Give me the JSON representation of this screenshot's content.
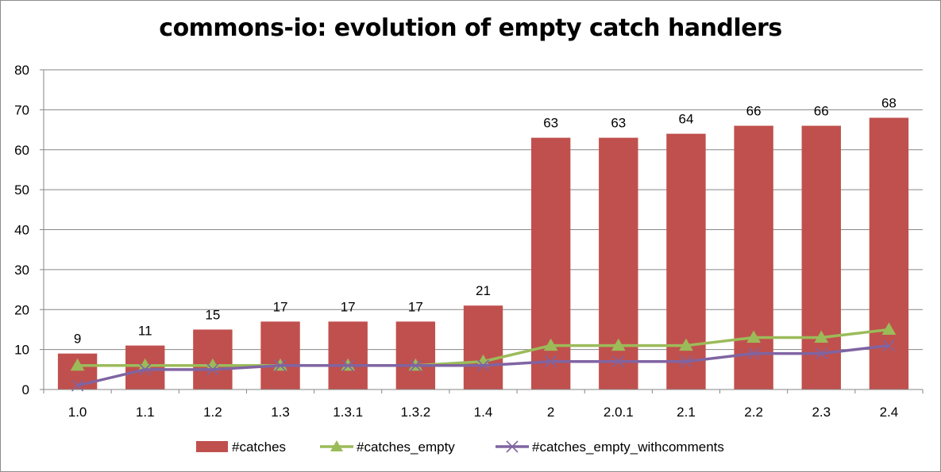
{
  "chart_data": {
    "type": "bar",
    "title": "commons-io: evolution of empty catch handlers",
    "categories": [
      "1.0",
      "1.1",
      "1.2",
      "1.3",
      "1.3.1",
      "1.3.2",
      "1.4",
      "2",
      "2.0.1",
      "2.1",
      "2.2",
      "2.3",
      "2.4"
    ],
    "series": [
      {
        "name": "#catches",
        "kind": "bar",
        "color": "#c0504d",
        "values": [
          9,
          11,
          15,
          17,
          17,
          17,
          21,
          63,
          63,
          64,
          66,
          66,
          68
        ],
        "data_labels": true
      },
      {
        "name": "#catches_empty",
        "kind": "line",
        "marker": "triangle",
        "color": "#9bbb59",
        "values": [
          6,
          6,
          6,
          6,
          6,
          6,
          7,
          11,
          11,
          11,
          13,
          13,
          15
        ]
      },
      {
        "name": "#catches_empty_withcomments",
        "kind": "line",
        "marker": "x",
        "color": "#8064a2",
        "values": [
          1,
          5,
          5,
          6,
          6,
          6,
          6,
          7,
          7,
          7,
          9,
          9,
          11
        ]
      }
    ],
    "yticks": [
      0,
      10,
      20,
      30,
      40,
      50,
      60,
      70,
      80
    ],
    "ylim": [
      0,
      80
    ],
    "grid": true,
    "legend": "bottom"
  }
}
